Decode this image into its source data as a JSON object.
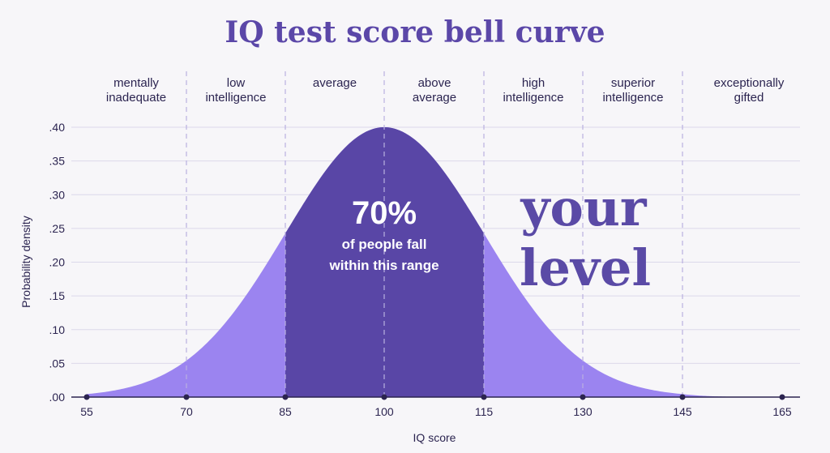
{
  "chart_data": {
    "type": "area",
    "title": "IQ test score bell curve",
    "xlabel": "IQ score",
    "ylabel": "Probability density",
    "x_ticks": [
      55,
      70,
      85,
      100,
      115,
      130,
      145,
      165
    ],
    "xlim": [
      55,
      165
    ],
    "y_ticks": [
      ".00",
      ".05",
      ".10",
      ".15",
      ".20",
      ".25",
      ".30",
      ".35",
      ".40"
    ],
    "ylim": [
      0,
      0.4
    ],
    "distribution": {
      "mean": 100,
      "sd": 15,
      "peak_density": 0.4
    },
    "highlight_range": [
      85,
      115
    ],
    "categories": [
      {
        "label": [
          "mentally",
          "inadequate"
        ],
        "range": [
          55,
          70
        ]
      },
      {
        "label": [
          "low",
          "intelligence"
        ],
        "range": [
          70,
          85
        ]
      },
      {
        "label": [
          "average"
        ],
        "range": [
          85,
          100
        ]
      },
      {
        "label": [
          "above",
          "average"
        ],
        "range": [
          100,
          115
        ]
      },
      {
        "label": [
          "high",
          "intelligence"
        ],
        "range": [
          115,
          130
        ]
      },
      {
        "label": [
          "superior",
          "intelligence"
        ],
        "range": [
          130,
          145
        ]
      },
      {
        "label": [
          "exceptionally",
          "gifted"
        ],
        "range": [
          145,
          165
        ]
      }
    ],
    "annotation": {
      "value": "70%",
      "lines": [
        "of people fall",
        "within this range"
      ]
    },
    "side_text": [
      "your",
      "level"
    ],
    "grid": true,
    "colors": {
      "title": "#5b47a8",
      "curve_light": "#9b84f0",
      "curve_dark": "#5946a6",
      "grid": "#dcd8ea",
      "divider": "#b9b0e0",
      "text": "#2b2450",
      "side_text": "#5a4aa6"
    }
  }
}
